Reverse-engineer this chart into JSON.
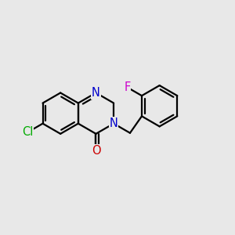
{
  "bg_color": "#e8e8e8",
  "bond_color": "#000000",
  "lw": 1.6,
  "atom_colors": {
    "N": "#0000cc",
    "O": "#cc0000",
    "Cl": "#00aa00",
    "F": "#cc00cc"
  },
  "font_size": 10.5,
  "BL": 0.088
}
